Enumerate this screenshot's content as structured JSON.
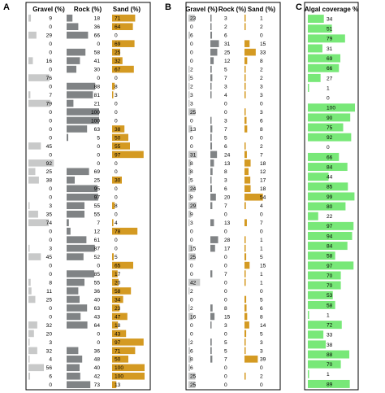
{
  "colors": {
    "gravel": "#c8c9c9",
    "rock": "#808385",
    "sand": "#d49a22",
    "algae": "#78e878",
    "frame": "#000000"
  },
  "chart_data": [
    {
      "type": "bar",
      "panel": "A",
      "series": [
        {
          "name": "Gravel (%)",
          "values": [
            9,
            0,
            29,
            0,
            0,
            16,
            0,
            76,
            0,
            7,
            79,
            0,
            0,
            0,
            0,
            45,
            0,
            92,
            25,
            38,
            0,
            0,
            3,
            35,
            74,
            0,
            0,
            3,
            45,
            0,
            0,
            8,
            11,
            25,
            0,
            0,
            32,
            20,
            3,
            32,
            4,
            56,
            6,
            0
          ]
        },
        {
          "name": "Rock (%)",
          "values": [
            18,
            36,
            66,
            0,
            58,
            41,
            30,
            0,
            88,
            81,
            21,
            100,
            100,
            63,
            5,
            0,
            0,
            0,
            69,
            25,
            95,
            97,
            55,
            55,
            7,
            12,
            61,
            87,
            52,
            0,
            85,
            55,
            36,
            40,
            63,
            43,
            64,
            0,
            0,
            36,
            48,
            40,
            42,
            73
          ]
        },
        {
          "name": "Sand (%)",
          "values": [
            71,
            64,
            0,
            69,
            25,
            32,
            67,
            0,
            8,
            3,
            0,
            0,
            0,
            38,
            50,
            55,
            97,
            0,
            0,
            30,
            0,
            0,
            8,
            0,
            4,
            78,
            0,
            0,
            5,
            65,
            17,
            20,
            58,
            34,
            23,
            47,
            18,
            43,
            97,
            71,
            50,
            100,
            100,
            13
          ]
        }
      ],
      "xlim": [
        0,
        100
      ]
    },
    {
      "type": "bar",
      "panel": "B",
      "series": [
        {
          "name": "Gravel (%)",
          "values": [
            23,
            0,
            6,
            0,
            0,
            0,
            2,
            5,
            2,
            3,
            3,
            25,
            0,
            13,
            0,
            0,
            31,
            8,
            8,
            5,
            24,
            9,
            29,
            9,
            3,
            0,
            0,
            15,
            25,
            0,
            0,
            42,
            2,
            0,
            2,
            16,
            0,
            0,
            2,
            6,
            8,
            6,
            25,
            25
          ]
        },
        {
          "name": "Rock (%)",
          "values": [
            3,
            2,
            6,
            31,
            25,
            12,
            5,
            7,
            3,
            4,
            0,
            0,
            3,
            7,
            5,
            6,
            24,
            13,
            8,
            3,
            6,
            20,
            7,
            0,
            13,
            0,
            28,
            17,
            0,
            0,
            7,
            0,
            0,
            0,
            8,
            15,
            3,
            0,
            5,
            5,
            7,
            0,
            0,
            0
          ]
        },
        {
          "name": "Sand (%)",
          "values": [
            1,
            2,
            0,
            15,
            33,
            8,
            2,
            2,
            3,
            3,
            0,
            3,
            6,
            8,
            0,
            2,
            7,
            18,
            12,
            17,
            18,
            54,
            4,
            0,
            7,
            0,
            1,
            1,
            5,
            15,
            1,
            1,
            0,
            5,
            6,
            8,
            14,
            5,
            3,
            3,
            39,
            0,
            2,
            0
          ]
        },
        {
          "name": "Algal coverage %",
          "values": [
            34,
            51,
            79,
            31,
            69,
            66,
            27,
            1,
            0,
            100,
            90,
            75,
            92,
            0,
            66,
            84,
            44,
            85,
            99,
            80,
            22,
            97,
            94,
            84,
            58,
            97,
            70,
            70,
            53,
            58,
            1,
            72,
            33,
            38,
            88,
            70,
            1,
            89
          ]
        }
      ]
    },
    {
      "type": "bar",
      "panel": "C",
      "series": [
        {
          "name": "Algal coverage %",
          "values": [
            34,
            51,
            79,
            31,
            69,
            66,
            27,
            1,
            0,
            100,
            90,
            75,
            92,
            0,
            66,
            84,
            44,
            85,
            99,
            80,
            22,
            97,
            94,
            84,
            58,
            97,
            70,
            70,
            53,
            58,
            1,
            72,
            33,
            38,
            88,
            70,
            1,
            89
          ]
        }
      ],
      "xlim": [
        0,
        100
      ]
    }
  ],
  "panels": {
    "a": {
      "letter": "A",
      "headers": [
        "Gravel (%)",
        "Rock (%)",
        "Sand (%)"
      ]
    },
    "b": {
      "letter": "B",
      "headers": [
        "Gravel (%)",
        "Rock (%)",
        "Sand (%)"
      ]
    },
    "c": {
      "letter": "C",
      "headers": [
        "Algal coverage %"
      ]
    }
  }
}
